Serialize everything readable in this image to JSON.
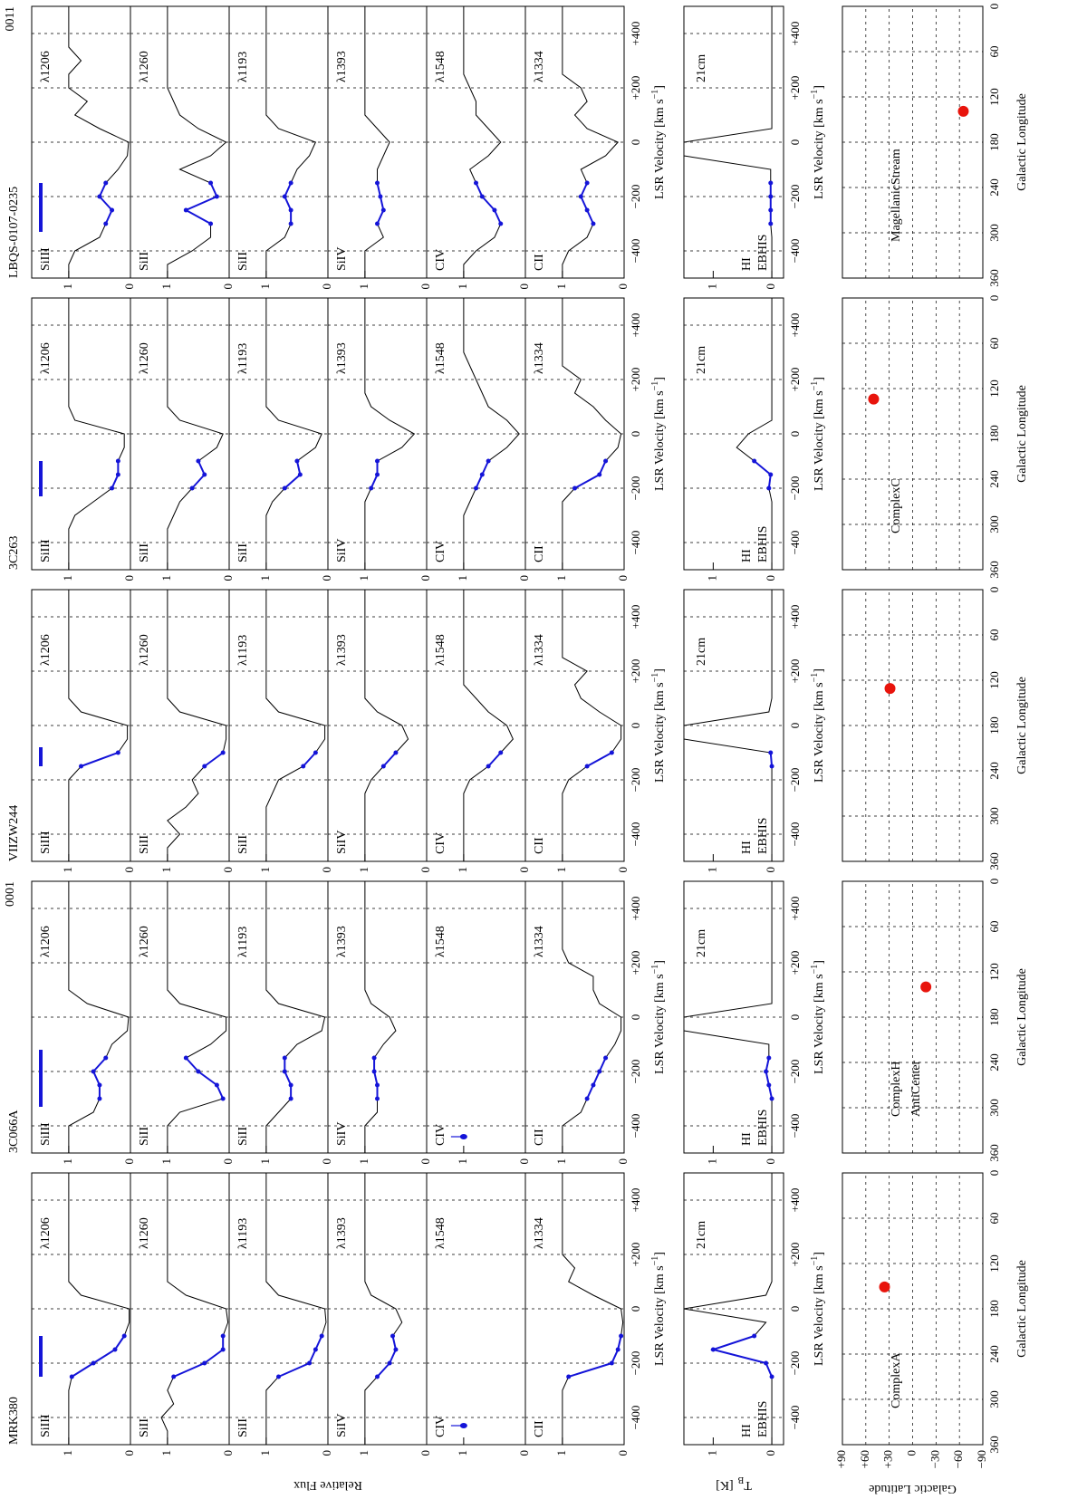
{
  "chart_data": {
    "type": "spectra-grid",
    "flux_label": "Relative Flux",
    "hi_label": {
      "text": "T",
      "subscript": "B",
      "unit": "[K]"
    },
    "lat_label": "Galactic Latitude",
    "lon_label": "Galactic Longitude",
    "velocity_label": {
      "text": "LSR Velocity [km s",
      "superscript": "−1",
      "close": "]"
    },
    "velocity": [
      -500,
      -450,
      -400,
      -350,
      -300,
      -250,
      -200,
      -150,
      -100,
      -50,
      0,
      50,
      100,
      150,
      200,
      250,
      300,
      350,
      400,
      450,
      500
    ],
    "xlim": [
      -500,
      500
    ],
    "xticks": [
      {
        "value": -400,
        "label": "−400"
      },
      {
        "value": -200,
        "label": "−200"
      },
      0,
      {
        "value": 200,
        "label": "+200"
      },
      {
        "value": 400,
        "label": "+400"
      }
    ],
    "ylim": [
      0,
      1.6
    ],
    "yticks": [
      0,
      1
    ],
    "hi_ylim": [
      -0.2,
      1.5
    ],
    "hi_yticks": [
      0,
      1
    ],
    "lon_lim": [
      360,
      0
    ],
    "lon_ticks": [
      360,
      300,
      240,
      180,
      120,
      60,
      0
    ],
    "lat_lim": [
      -90,
      90
    ],
    "lat_ticks": [
      {
        "value": 90,
        "label": "+90"
      },
      {
        "value": 60,
        "label": "+60"
      },
      {
        "value": 30,
        "label": "+30"
      },
      0,
      {
        "value": -30,
        "label": "−30"
      },
      {
        "value": -60,
        "label": "−60"
      },
      {
        "value": -90,
        "label": "−90"
      }
    ],
    "lines": [
      {
        "ion": "SiIII",
        "wavelength": "λ1206"
      },
      {
        "ion": "SiII",
        "wavelength": "λ1260"
      },
      {
        "ion": "SiII",
        "wavelength": "λ1193"
      },
      {
        "ion": "SiIV",
        "wavelength": "λ1393"
      },
      {
        "ion": "CIV",
        "wavelength": "λ1548"
      },
      {
        "ion": "CII",
        "wavelength": "λ1334"
      }
    ],
    "hi_text": {
      "name": "HI",
      "survey": "EBHIS",
      "line": "21cm"
    },
    "colors": {
      "spectrum": "#000000",
      "fit": "#1414d8",
      "position": "#e8140c",
      "code": "#d01010"
    },
    "sightlines": [
      {
        "name": "MRK380",
        "fit_range": [
          -250,
          -100
        ],
        "longitude": 151,
        "latitude": 36,
        "regions": [
          "ComplexA"
        ],
        "limit_point": [
          -430,
          1
        ],
        "flux": [
          [
            1,
            1,
            1,
            1,
            1,
            0.95,
            0.6,
            0.25,
            0.1,
            0.02,
            0.02,
            0.8,
            1,
            1,
            1,
            1,
            1,
            1,
            1,
            1,
            1
          ],
          [
            1,
            1,
            1.1,
            0.9,
            1,
            0.9,
            0.4,
            0.1,
            0.1,
            0.02,
            0.05,
            0.7,
            1,
            1,
            1,
            1,
            1,
            1,
            1,
            1,
            1
          ],
          [
            1,
            1,
            1,
            1,
            1,
            0.8,
            0.3,
            0.2,
            0.1,
            0.03,
            0.05,
            0.8,
            1,
            1,
            1,
            1,
            1,
            1,
            1,
            1,
            1
          ],
          [
            1,
            1,
            1,
            1,
            1,
            0.8,
            0.6,
            0.5,
            0.55,
            0.4,
            0.5,
            0.9,
            1,
            1,
            1,
            1,
            1,
            1,
            1,
            1,
            1
          ],
          null,
          [
            1,
            1,
            1,
            1,
            1,
            0.9,
            0.2,
            0.1,
            0.05,
            0.02,
            0.05,
            0.5,
            0.9,
            0.8,
            1,
            1,
            1,
            1,
            1,
            1,
            1
          ]
        ],
        "hi": [
          0,
          0,
          0,
          0,
          0,
          0,
          0.1,
          1,
          0.3,
          0.1,
          1.5,
          0.1,
          0,
          0,
          0,
          0,
          0,
          0,
          0,
          0,
          0
        ]
      },
      {
        "name": "3C066A",
        "code": "0001",
        "fit_range": [
          -330,
          -120
        ],
        "longitude": 140,
        "latitude": -17,
        "regions": [
          "ComplexH",
          "AntiCenter"
        ],
        "limit_point": [
          -440,
          1
        ],
        "flux": [
          [
            1,
            1,
            1,
            0.6,
            0.5,
            0.5,
            0.6,
            0.4,
            0.3,
            0.05,
            0.03,
            0.7,
            1,
            1,
            1,
            1,
            1,
            1,
            1,
            1,
            1
          ],
          [
            1,
            1,
            1,
            0.8,
            0.1,
            0.2,
            0.5,
            0.7,
            0.3,
            0.05,
            0.05,
            0.8,
            1,
            1,
            1,
            1,
            1,
            1,
            1,
            1,
            1
          ],
          [
            1,
            1,
            1,
            0.8,
            0.6,
            0.6,
            0.7,
            0.7,
            0.5,
            0.1,
            0.05,
            0.8,
            1,
            1,
            1,
            1,
            1,
            1,
            1,
            1,
            1
          ],
          [
            1,
            1,
            1,
            0.8,
            0.8,
            0.8,
            0.85,
            0.85,
            0.7,
            0.5,
            0.6,
            0.9,
            1,
            1,
            1,
            1,
            1,
            1,
            1,
            1,
            1
          ],
          null,
          [
            1,
            1,
            1,
            0.7,
            0.6,
            0.5,
            0.4,
            0.3,
            0.15,
            0.05,
            0.05,
            0.4,
            0.5,
            0.5,
            0.9,
            1,
            1,
            1,
            1,
            1,
            1
          ]
        ],
        "hi": [
          0,
          0,
          0,
          0,
          0,
          0.05,
          0.1,
          0.05,
          0.05,
          1.5,
          1.5,
          0,
          0,
          0,
          0,
          0,
          0,
          0,
          0,
          0,
          0
        ]
      },
      {
        "name": "VIIZW244",
        "fit_range": [
          -150,
          -80
        ],
        "longitude": 131,
        "latitude": 29,
        "flux": [
          [
            1,
            1,
            1,
            1,
            1,
            1,
            1,
            0.8,
            0.2,
            0.05,
            0.05,
            0.8,
            1,
            1,
            1,
            1,
            1,
            1,
            1,
            1,
            1
          ],
          [
            1,
            1,
            0.8,
            1,
            0.7,
            0.5,
            0.6,
            0.4,
            0.1,
            0.05,
            0.05,
            0.8,
            1,
            1,
            1,
            1,
            1,
            1,
            1,
            1,
            1
          ],
          [
            1,
            1,
            1,
            1,
            1,
            0.9,
            0.8,
            0.4,
            0.2,
            0.05,
            0.05,
            0.8,
            1,
            1,
            1,
            1,
            1,
            1,
            1,
            1,
            1
          ],
          [
            1,
            1,
            1,
            1,
            1,
            1,
            0.9,
            0.7,
            0.5,
            0.3,
            0.4,
            0.8,
            1,
            1,
            1,
            1,
            1,
            1,
            1,
            1,
            1
          ],
          [
            1,
            1,
            1,
            1,
            1,
            1,
            0.9,
            0.6,
            0.4,
            0.2,
            0.3,
            0.6,
            0.8,
            1,
            1,
            1,
            1,
            1,
            1,
            1,
            1
          ],
          [
            1,
            1,
            1,
            1,
            1,
            1,
            0.9,
            0.6,
            0.2,
            0.05,
            0.05,
            0.4,
            0.7,
            0.8,
            0.6,
            1,
            1,
            1,
            1,
            1,
            1
          ]
        ],
        "hi": [
          0,
          0,
          0,
          0,
          0,
          0,
          0,
          0,
          0.02,
          1.5,
          1.5,
          0.05,
          0,
          0,
          0,
          0,
          0,
          0,
          0,
          0,
          0
        ]
      },
      {
        "name": "3C263",
        "fit_range": [
          -230,
          -100
        ],
        "longitude": 134,
        "latitude": 50,
        "regions": [
          "ComplexC"
        ],
        "flux": [
          [
            1,
            1,
            1,
            1,
            0.9,
            0.6,
            0.3,
            0.2,
            0.2,
            0.1,
            0.1,
            0.9,
            1,
            1,
            1,
            1,
            1,
            1,
            1,
            1,
            1
          ],
          [
            1,
            1,
            1,
            1,
            0.9,
            0.8,
            0.6,
            0.4,
            0.5,
            0.2,
            0.1,
            0.8,
            1,
            1,
            1,
            1,
            1,
            1,
            1,
            1,
            1
          ],
          [
            1,
            1,
            1,
            1,
            1,
            0.9,
            0.7,
            0.45,
            0.5,
            0.2,
            0.1,
            0.8,
            1,
            1,
            1,
            1,
            1,
            1,
            1,
            1,
            1
          ],
          [
            1,
            1,
            1,
            1,
            1,
            1,
            0.9,
            0.8,
            0.8,
            0.4,
            0.2,
            0.6,
            0.9,
            1,
            1,
            1,
            1,
            1,
            1,
            1,
            1
          ],
          [
            1,
            1,
            1,
            1,
            1,
            0.9,
            0.8,
            0.7,
            0.6,
            0.3,
            0.1,
            0.3,
            0.6,
            0.7,
            0.8,
            0.9,
            1,
            1,
            1,
            1,
            1
          ],
          [
            1,
            1,
            1,
            1,
            1,
            1,
            0.8,
            0.4,
            0.3,
            0.1,
            0.05,
            0.3,
            0.5,
            0.8,
            0.7,
            1,
            1,
            1,
            1,
            1,
            1
          ]
        ],
        "hi": [
          0,
          0,
          0,
          0,
          0,
          0,
          0.05,
          0.02,
          0.3,
          0.6,
          0.4,
          0,
          0,
          0,
          0,
          0,
          0,
          0,
          0,
          0,
          0
        ]
      },
      {
        "name": "LBQS-0107-0235",
        "code": "0011",
        "fit_range": [
          -330,
          -150
        ],
        "longitude": 139,
        "latitude": -65,
        "regions": [
          "MagellanicStream"
        ],
        "flux": [
          [
            1,
            1,
            0.9,
            0.5,
            0.4,
            0.3,
            0.5,
            0.4,
            0.2,
            0.05,
            0.03,
            0.5,
            0.9,
            0.7,
            1,
            1,
            0.8,
            1,
            1,
            1,
            1
          ],
          [
            1,
            1,
            0.6,
            0.3,
            0.3,
            0.7,
            0.2,
            0.3,
            0.8,
            0.3,
            0.05,
            0.5,
            0.8,
            0.9,
            1,
            1,
            1,
            1,
            1,
            1,
            1
          ],
          [
            1,
            1,
            1,
            0.7,
            0.6,
            0.6,
            0.7,
            0.6,
            0.5,
            0.3,
            0.2,
            0.8,
            1,
            1,
            1,
            1,
            1,
            1,
            1,
            1,
            1
          ],
          [
            1,
            1,
            1,
            0.7,
            0.8,
            0.7,
            0.75,
            0.8,
            0.8,
            0.7,
            0.6,
            0.8,
            1,
            1,
            1,
            1,
            1,
            1,
            1,
            1,
            1
          ],
          [
            1,
            1,
            0.8,
            0.5,
            0.4,
            0.5,
            0.7,
            0.8,
            0.9,
            0.6,
            0.4,
            0.6,
            0.8,
            0.8,
            0.9,
            1,
            1,
            1,
            1,
            1,
            1
          ],
          [
            1,
            1,
            0.9,
            0.6,
            0.5,
            0.6,
            0.7,
            0.6,
            0.7,
            0.3,
            0.1,
            0.6,
            0.8,
            0.6,
            0.7,
            1,
            1,
            1,
            1,
            1,
            1
          ]
        ],
        "hi": [
          0,
          0,
          0,
          0,
          0.02,
          0.02,
          0.02,
          0.02,
          0.02,
          1.5,
          1.5,
          0,
          0,
          0,
          0,
          0,
          0,
          0,
          0,
          0,
          0
        ]
      }
    ]
  }
}
